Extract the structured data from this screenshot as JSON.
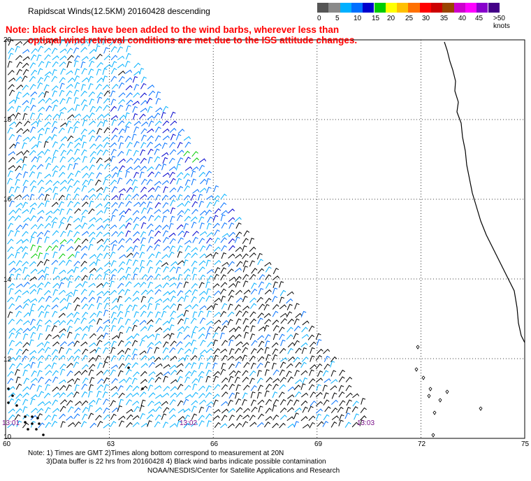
{
  "header": {
    "title": "Rapidscat Winds(12.5KM) 20160428 descending",
    "note_line1": "Note: black circles have been added to the wind barbs, wherever less than",
    "note_line2": "optimal wind retrieval conditions are met due to the ISS attitude changes."
  },
  "legend": {
    "colors": [
      "#555555",
      "#8a8a8a",
      "#00b0ff",
      "#0070ff",
      "#0000cc",
      "#00cc00",
      "#ffff00",
      "#ffc000",
      "#ff7000",
      "#ff0000",
      "#cc0000",
      "#994400",
      "#cc00cc",
      "#ff00ff",
      "#8800cc",
      "#440088"
    ],
    "ticks": [
      "0",
      "5",
      "10",
      "15",
      "20",
      "25",
      "30",
      "35",
      "40",
      "45",
      ">50 knots"
    ]
  },
  "axes": {
    "lat_labels": [
      "20",
      "18",
      "16",
      "14",
      "12",
      "10"
    ],
    "lon_labels": [
      "60",
      "63",
      "66",
      "69",
      "72",
      "75"
    ]
  },
  "time_labels": [
    "13:01",
    "13:02",
    "13:03"
  ],
  "footer": {
    "line1": "Note: 1) Times are GMT 2)Times along bottom correspond to measurement at 20N",
    "line2": "3)Data buffer is 22 hrs from 20160428 4) Black wind barbs indicate possible contamination",
    "line3": "NOAA/NESDIS/Center for Satellite Applications and Research"
  },
  "map": {
    "lon_range": [
      60,
      75
    ],
    "lat_range": [
      10,
      20
    ],
    "grid": "dotted",
    "coastline": "India west coast"
  }
}
